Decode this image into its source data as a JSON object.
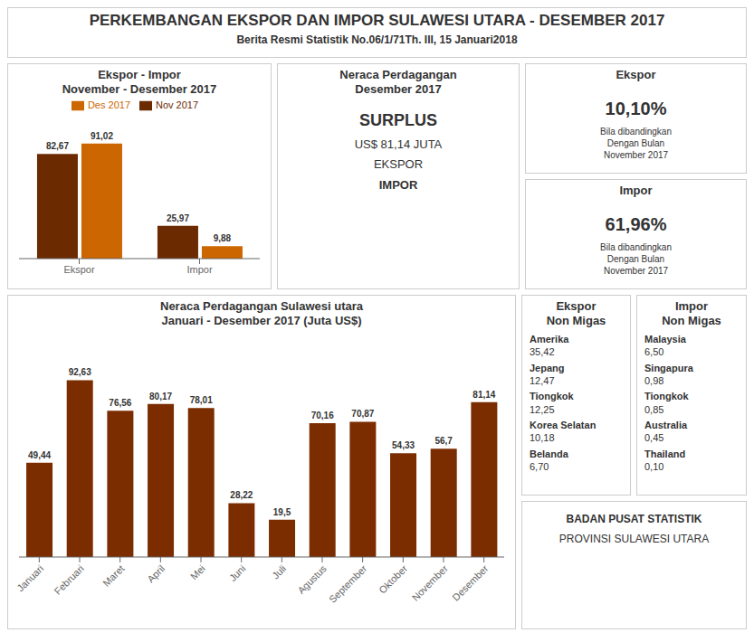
{
  "chart_data": [
    {
      "type": "text",
      "title": "PERKEMBANGAN EKSPOR DAN IMPOR SULAWESI UTARA - DESEMBER 2017",
      "subtitle": "Berita Resmi Statistik No.06/1/71Th. III, 15 Januari2018"
    },
    {
      "type": "bar",
      "title": "Ekspor - Impor\nNovember - Desember 2017",
      "categories": [
        "Ekspor",
        "Impor"
      ],
      "series": [
        {
          "name": "Nov\n2017",
          "color": "#6B2A00",
          "values": [
            82.67,
            25.97
          ],
          "value_labels": [
            "82,67",
            "25,97"
          ]
        },
        {
          "name": "Des\n2017",
          "color": "#CC6600",
          "values": [
            91.02,
            9.88
          ],
          "value_labels": [
            "91,02",
            "9,88"
          ]
        }
      ],
      "ylim": [
        0,
        100
      ],
      "data_labels": true,
      "tick_labels": "x"
    },
    {
      "type": "text",
      "title": "Neraca Perdagangan\nDesember 2017",
      "annotations": [
        "SURPLUS",
        "US$ 81,14 JUTA",
        "EKSPOR",
        "IMPOR"
      ]
    },
    {
      "type": "text",
      "title": "Ekspor",
      "annotations": [
        "10,10%",
        "Bila dibandingkan\nDengan Bulan\nNovember 2017"
      ]
    },
    {
      "type": "text",
      "title": "Impor",
      "annotations": [
        "61,96%",
        "Bila dibandingkan\nDengan Bulan\nNovember 2017"
      ]
    },
    {
      "type": "bar",
      "title": "Neraca Perdagangan Sulawesi utara\nJanuari - Desember 2017 (Juta US$)",
      "categories": [
        "Januari",
        "Februari",
        "Maret",
        "April",
        "Mei",
        "Juni",
        "Juli",
        "Agustus",
        "September",
        "Oktober",
        "November",
        "Desember"
      ],
      "values": [
        49.44,
        92.63,
        76.56,
        80.17,
        78.01,
        28.22,
        19.5,
        70.16,
        70.87,
        54.33,
        56.7,
        81.14
      ],
      "value_labels": [
        "49,44",
        "92,63",
        "76,56",
        "80,17",
        "78,01",
        "28,22",
        "19,5",
        "70,16",
        "70,87",
        "54,33",
        "56,7",
        "81,14"
      ],
      "color": "#7B2D00",
      "ylim": [
        0,
        108
      ],
      "data_labels": true,
      "tick_labels": "x"
    },
    {
      "type": "text",
      "title": "Ekspor\nNon Migas",
      "annotations": [
        "Amerika",
        "35,42",
        "Jepang",
        "12,47",
        "Tiongkok",
        "12,25",
        "Korea Selatan",
        "10,18",
        "Belanda",
        "6,70"
      ]
    },
    {
      "type": "text",
      "title": "Impor\nNon Migas",
      "annotations": [
        "Malaysia",
        "6,50",
        "Singapura",
        "0,98",
        "Tiongkok",
        "0,85",
        "Australia",
        "0,45",
        "Thailand",
        "0,10"
      ]
    },
    {
      "type": "text",
      "annotations": [
        "BADAN PUSAT STATISTIK",
        "PROVINSI SULAWESI UTARA"
      ]
    }
  ]
}
